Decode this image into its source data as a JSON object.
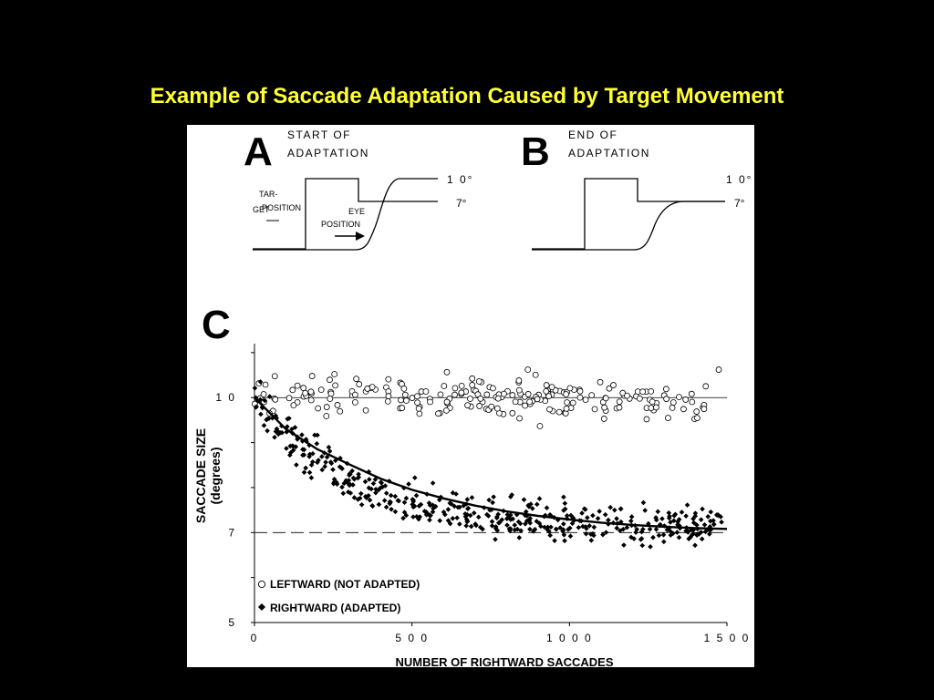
{
  "slide": {
    "title": "Example of Saccade Adaptation Caused by Target Movement"
  },
  "panel_a": {
    "letter": "A",
    "caption_line1": "START OF",
    "caption_line2": "ADAPTATION",
    "target_label_line1": "TAR-",
    "target_label_line2": "GET",
    "position_label": "POSITION",
    "eye_label_line1": "EYE",
    "eye_label_line2": "POSITION",
    "level_high": "1 0°",
    "level_low": "7°"
  },
  "panel_b": {
    "letter": "B",
    "caption_line1": "END OF",
    "caption_line2": "ADAPTATION",
    "level_high": "1 0°",
    "level_low": "7°"
  },
  "panel_c": {
    "letter": "C"
  },
  "chart_data": {
    "type": "scatter",
    "xlabel": "NUMBER OF RIGHTWARD SACCADES",
    "ylabel_line1": "SACCADE SIZE",
    "ylabel_line2": "(degrees)",
    "xlim": [
      0,
      1500
    ],
    "ylim": [
      5,
      11.2
    ],
    "x_ticks": [
      0,
      500,
      1000,
      1500
    ],
    "x_tick_labels": [
      "0",
      "5 0 0",
      "1 0 0 0",
      "1 5 0 0"
    ],
    "y_ticks": [
      5,
      7,
      10
    ],
    "y_tick_labels": [
      "5",
      "7",
      "1 0"
    ],
    "reference_lines": [
      {
        "y": 10,
        "style": "solid"
      },
      {
        "y": 7,
        "style": "dashed"
      }
    ],
    "series": [
      {
        "name": "LEFTWARD (NOT ADAPTED)",
        "marker": "open-circle",
        "description_stats": {
          "n": 220,
          "x_range": [
            0,
            1480
          ],
          "mean": 10.0,
          "sd": 0.35
        }
      },
      {
        "name": "RIGHTWARD (ADAPTED)",
        "marker": "filled-diamond",
        "description_stats": {
          "n": 460,
          "x_range": [
            0,
            1490
          ],
          "start": 10.0,
          "asymptote": 7.1,
          "tau": 300,
          "sd": 0.35
        }
      }
    ],
    "fit_curve": {
      "form": "exponential",
      "x": [
        0,
        100,
        200,
        300,
        400,
        500,
        600,
        700,
        800,
        900,
        1000,
        1100,
        1200,
        1300,
        1400,
        1500
      ],
      "y": [
        10.0,
        9.3,
        8.85,
        8.52,
        8.2,
        7.95,
        7.76,
        7.6,
        7.47,
        7.37,
        7.29,
        7.22,
        7.17,
        7.13,
        7.1,
        7.08
      ]
    },
    "legend": {
      "placement": "bottom-left"
    }
  }
}
